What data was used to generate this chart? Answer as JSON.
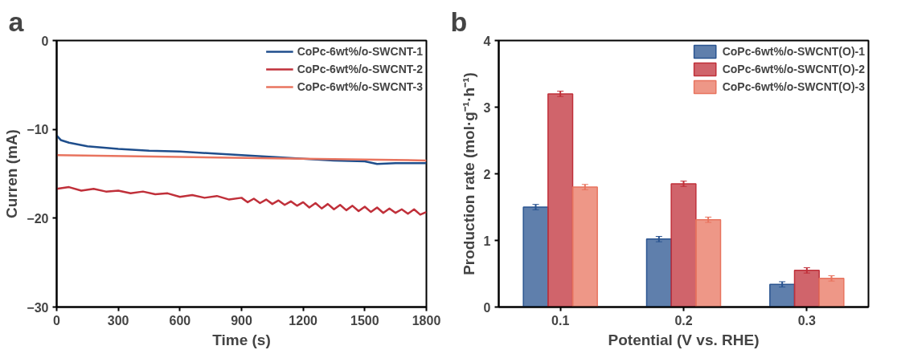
{
  "chart_data": [
    {
      "type": "line",
      "annotations": [
        "a"
      ],
      "xlabel": "Time (s)",
      "ylabel": "Curren (mA)",
      "xlim": [
        0,
        1800
      ],
      "ylim": [
        -30,
        0
      ],
      "xticks": [
        0,
        300,
        600,
        900,
        1200,
        1500,
        1800
      ],
      "yticks": [
        -30,
        -20,
        -10,
        0
      ],
      "grid": false,
      "legend": "top right",
      "line_style": "solid",
      "marker": "none",
      "series": [
        {
          "name": "CoPc-6wt%/o-SWCNT-1",
          "color": "#1f4e8c",
          "x": [
            0,
            20,
            60,
            150,
            300,
            450,
            600,
            750,
            900,
            1050,
            1350,
            1500,
            1560,
            1650,
            1800
          ],
          "values": [
            -10.7,
            -11.2,
            -11.5,
            -11.9,
            -12.2,
            -12.4,
            -12.5,
            -12.7,
            -12.9,
            -13.1,
            -13.5,
            -13.6,
            -13.9,
            -13.8,
            -13.8
          ]
        },
        {
          "name": "CoPc-6wt%/o-SWCNT-2",
          "color": "#c0303a",
          "x": [
            0,
            60,
            120,
            180,
            240,
            300,
            360,
            420,
            480,
            540,
            600,
            660,
            720,
            780,
            840,
            900,
            930,
            960,
            990,
            1020,
            1050,
            1080,
            1110,
            1140,
            1170,
            1200,
            1230,
            1260,
            1290,
            1320,
            1350,
            1380,
            1410,
            1440,
            1470,
            1500,
            1530,
            1560,
            1590,
            1620,
            1650,
            1680,
            1710,
            1740,
            1770,
            1800
          ],
          "values": [
            -16.7,
            -16.5,
            -16.9,
            -16.7,
            -17.0,
            -16.9,
            -17.2,
            -17.0,
            -17.3,
            -17.2,
            -17.6,
            -17.4,
            -17.7,
            -17.5,
            -17.9,
            -17.7,
            -18.2,
            -17.8,
            -18.3,
            -17.9,
            -18.4,
            -18.0,
            -18.5,
            -18.1,
            -18.6,
            -18.2,
            -18.8,
            -18.3,
            -18.9,
            -18.4,
            -19.0,
            -18.5,
            -19.1,
            -18.6,
            -19.2,
            -18.7,
            -19.3,
            -18.8,
            -19.4,
            -18.9,
            -19.4,
            -19.0,
            -19.5,
            -19.0,
            -19.6,
            -19.3
          ]
        },
        {
          "name": "CoPc-6wt%/o-SWCNT-3",
          "color": "#e8745f",
          "x": [
            0,
            600,
            1200,
            1800
          ],
          "values": [
            -12.9,
            -13.1,
            -13.3,
            -13.5
          ]
        }
      ]
    },
    {
      "type": "bar",
      "annotations": [
        "b"
      ],
      "xlabel": "Potential (V vs. RHE)",
      "ylabel": "Production rate (mol·g⁻¹·h⁻¹)",
      "categories": [
        "0.1",
        "0.2",
        "0.3"
      ],
      "ylim": [
        0,
        4
      ],
      "yticks": [
        0,
        1,
        2,
        3,
        4
      ],
      "grid": false,
      "legend": "top right",
      "series": [
        {
          "name": "CoPc-6wt%/o-SWCNT(O)-1",
          "color": "#2a5490",
          "values": [
            1.5,
            1.02,
            0.34
          ],
          "errors": [
            0.04,
            0.04,
            0.04
          ]
        },
        {
          "name": "CoPc-6wt%/o-SWCNT(O)-2",
          "color": "#c0303a",
          "values": [
            3.2,
            1.85,
            0.55
          ],
          "errors": [
            0.04,
            0.04,
            0.04
          ]
        },
        {
          "name": "CoPc-6wt%/o-SWCNT(O)-3",
          "color": "#e8745f",
          "values": [
            1.8,
            1.31,
            0.43
          ],
          "errors": [
            0.04,
            0.04,
            0.04
          ]
        }
      ]
    }
  ]
}
